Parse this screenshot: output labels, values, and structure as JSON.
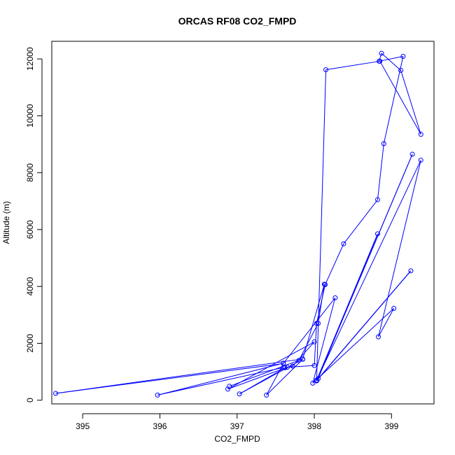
{
  "chart_data": {
    "type": "line",
    "title": "ORCAS RF08 CO2_FMPD",
    "xlabel": "CO2_FMPD",
    "ylabel": "Altitude (m)",
    "xlim": [
      394.6,
      399.55
    ],
    "ylim": [
      -130,
      12620
    ],
    "xticks": [
      395,
      396,
      397,
      398,
      399
    ],
    "yticks": [
      0,
      2000,
      4000,
      6000,
      8000,
      10000,
      12000
    ],
    "marker": "open-circle",
    "series_color": "#0000ff",
    "series": [
      {
        "x": [
          396.9,
          397.8,
          398.05,
          398.13,
          397.85,
          394.65,
          397.6,
          397.38,
          397.85,
          397.03,
          397.62,
          397.72,
          398.0,
          396.88,
          397.65,
          398.0,
          398.03,
          398.14,
          398.38,
          398.82,
          398.9,
          399.15,
          398.84,
          398.87,
          399.12,
          399.38,
          398.85,
          398.15,
          398.03,
          398.82,
          398.05,
          399.25,
          398.03,
          399.27,
          398.03,
          399.38,
          398.83,
          399.03,
          397.98,
          398.27,
          397.6,
          395.97,
          397.6
        ],
        "y": [
          490,
          1400,
          2700,
          4080,
          1450,
          240,
          1290,
          180,
          1440,
          220,
          1140,
          1200,
          2050,
          390,
          1160,
          1220,
          2700,
          4060,
          5500,
          7050,
          9020,
          12090,
          11920,
          12200,
          11600,
          9350,
          11920,
          11620,
          700,
          5850,
          760,
          4550,
          680,
          8650,
          700,
          8440,
          2230,
          3230,
          600,
          3600,
          1300,
          180,
          1150
        ]
      }
    ]
  }
}
